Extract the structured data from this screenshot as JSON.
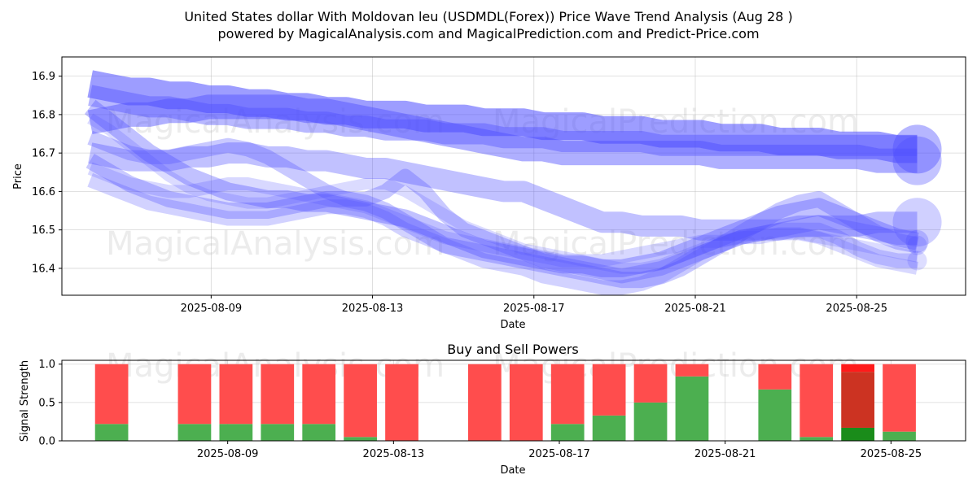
{
  "chart_data": [
    {
      "type": "line",
      "title": "United States dollar With Moldovan leu (USDMDL(Forex)) Price Wave Trend Analysis (Aug 28 )",
      "subtitle": "powered by MagicalAnalysis.com and MagicalPrediction.com and Predict-Price.com",
      "xlabel": "Date",
      "ylabel": "Price",
      "x_start": "2025-08-06",
      "x_end": "2025-08-27",
      "ylim": [
        16.33,
        16.95
      ],
      "xticks": [
        "2025-08-09",
        "2025-08-13",
        "2025-08-17",
        "2025-08-21",
        "2025-08-25"
      ],
      "yticks": [
        "16.4",
        "16.5",
        "16.6",
        "16.7",
        "16.8",
        "16.9"
      ],
      "watermarks": [
        "MagicalAnalysis.com",
        "MagicalPrediction.com",
        "MagicalAnalysis.com",
        "MagicalPrediction.com"
      ],
      "color": "#4d4dff",
      "x_days": [
        0,
        1,
        2,
        3,
        4,
        5,
        6,
        7,
        8,
        9,
        10,
        11,
        12,
        13,
        14,
        15,
        16,
        17,
        18,
        19,
        20,
        21,
        22,
        23,
        24,
        25,
        26,
        27,
        28,
        29,
        30,
        31,
        32,
        33,
        34,
        35,
        36,
        37,
        38,
        39,
        40,
        41,
        42
      ],
      "series": [
        {
          "name": "wave1",
          "width": 34,
          "opacity": 0.55,
          "values": [
            16.88,
            16.87,
            16.86,
            16.86,
            16.85,
            16.85,
            16.84,
            16.84,
            16.83,
            16.83,
            16.82,
            16.82,
            16.81,
            16.81,
            16.8,
            16.8,
            16.8,
            16.79,
            16.79,
            16.79,
            16.78,
            16.78,
            16.78,
            16.77,
            16.77,
            16.77,
            16.76,
            16.76,
            16.76,
            16.75,
            16.75,
            16.75,
            16.74,
            16.74,
            16.74,
            16.73,
            16.73,
            16.73,
            16.72,
            16.72,
            16.72,
            16.71,
            16.71
          ]
        },
        {
          "name": "wave2",
          "width": 30,
          "opacity": 0.45,
          "values": [
            16.78,
            16.79,
            16.8,
            16.8,
            16.81,
            16.81,
            16.82,
            16.82,
            16.82,
            16.82,
            16.82,
            16.81,
            16.81,
            16.8,
            16.79,
            16.78,
            16.77,
            16.76,
            16.75,
            16.74,
            16.73,
            16.72,
            16.71,
            16.71,
            16.7,
            16.7,
            16.7,
            16.7,
            16.7,
            16.7,
            16.7,
            16.7,
            16.69,
            16.69,
            16.69,
            16.69,
            16.69,
            16.69,
            16.69,
            16.69,
            16.68,
            16.68,
            16.68
          ]
        },
        {
          "name": "wave3",
          "width": 26,
          "opacity": 0.4,
          "values": [
            16.85,
            16.84,
            16.83,
            16.82,
            16.82,
            16.81,
            16.8,
            16.8,
            16.79,
            16.79,
            16.79,
            16.78,
            16.78,
            16.77,
            16.77,
            16.76,
            16.76,
            16.76,
            16.75,
            16.75,
            16.75,
            16.74,
            16.74,
            16.74,
            16.73,
            16.73,
            16.73,
            16.73,
            16.73,
            16.72,
            16.72,
            16.72,
            16.72,
            16.72,
            16.72,
            16.72,
            16.72,
            16.72,
            16.72,
            16.72,
            16.72,
            16.72,
            16.72
          ]
        },
        {
          "name": "wave4",
          "width": 26,
          "opacity": 0.35,
          "values": [
            16.7,
            16.69,
            16.68,
            16.68,
            16.68,
            16.69,
            16.69,
            16.7,
            16.7,
            16.69,
            16.69,
            16.68,
            16.68,
            16.67,
            16.66,
            16.66,
            16.65,
            16.64,
            16.63,
            16.62,
            16.61,
            16.6,
            16.6,
            16.58,
            16.56,
            16.54,
            16.52,
            16.52,
            16.51,
            16.51,
            16.51,
            16.5,
            16.5,
            16.5,
            16.5,
            16.5,
            16.51,
            16.51,
            16.51,
            16.51,
            16.52,
            16.52,
            16.52
          ]
        },
        {
          "name": "wave5",
          "width": 22,
          "opacity": 0.35,
          "values": [
            16.82,
            16.78,
            16.74,
            16.7,
            16.67,
            16.64,
            16.62,
            16.6,
            16.59,
            16.58,
            16.58,
            16.57,
            16.57,
            16.56,
            16.55,
            16.54,
            16.53,
            16.51,
            16.49,
            16.47,
            16.45,
            16.44,
            16.43,
            16.42,
            16.41,
            16.41,
            16.4,
            16.4,
            16.41,
            16.42,
            16.44,
            16.46,
            16.48,
            16.5,
            16.52,
            16.54,
            16.55,
            16.56,
            16.54,
            16.52,
            16.5,
            16.48,
            16.47
          ]
        },
        {
          "name": "wave6",
          "width": 20,
          "opacity": 0.3,
          "values": [
            16.68,
            16.65,
            16.62,
            16.6,
            16.58,
            16.57,
            16.56,
            16.55,
            16.55,
            16.55,
            16.56,
            16.57,
            16.58,
            16.58,
            16.57,
            16.55,
            16.52,
            16.49,
            16.46,
            16.45,
            16.44,
            16.43,
            16.42,
            16.41,
            16.4,
            16.39,
            16.38,
            16.37,
            16.37,
            16.38,
            16.4,
            16.43,
            16.46,
            16.49,
            16.52,
            16.55,
            16.57,
            16.58,
            16.55,
            16.52,
            16.49,
            16.47,
            16.46
          ]
        },
        {
          "name": "wave7",
          "width": 18,
          "opacity": 0.3,
          "values": [
            16.74,
            16.72,
            16.7,
            16.69,
            16.69,
            16.7,
            16.71,
            16.72,
            16.71,
            16.69,
            16.66,
            16.63,
            16.6,
            16.58,
            16.58,
            16.6,
            16.64,
            16.6,
            16.54,
            16.5,
            16.48,
            16.46,
            16.44,
            16.42,
            16.41,
            16.4,
            16.39,
            16.38,
            16.39,
            16.4,
            16.42,
            16.44,
            16.46,
            16.48,
            16.49,
            16.5,
            16.51,
            16.52,
            16.51,
            16.5,
            16.49,
            16.48,
            16.48
          ]
        },
        {
          "name": "wave8",
          "width": 18,
          "opacity": 0.25,
          "values": [
            16.63,
            16.61,
            16.59,
            16.57,
            16.56,
            16.55,
            16.54,
            16.53,
            16.53,
            16.53,
            16.54,
            16.55,
            16.56,
            16.56,
            16.55,
            16.53,
            16.5,
            16.48,
            16.46,
            16.44,
            16.42,
            16.41,
            16.4,
            16.38,
            16.37,
            16.36,
            16.35,
            16.35,
            16.36,
            16.38,
            16.41,
            16.44,
            16.46,
            16.48,
            16.49,
            16.5,
            16.5,
            16.5,
            16.48,
            16.45,
            16.43,
            16.42,
            16.42
          ]
        },
        {
          "name": "wave9",
          "width": 16,
          "opacity": 0.22,
          "values": [
            16.66,
            16.64,
            16.62,
            16.61,
            16.6,
            16.6,
            16.61,
            16.62,
            16.62,
            16.61,
            16.6,
            16.59,
            16.58,
            16.57,
            16.56,
            16.54,
            16.52,
            16.5,
            16.48,
            16.47,
            16.46,
            16.45,
            16.44,
            16.43,
            16.42,
            16.42,
            16.42,
            16.43,
            16.44,
            16.45,
            16.46,
            16.47,
            16.47,
            16.48,
            16.48,
            16.49,
            16.49,
            16.48,
            16.46,
            16.44,
            16.42,
            16.41,
            16.4
          ]
        },
        {
          "name": "wave10",
          "width": 14,
          "opacity": 0.2,
          "values": [
            16.79,
            16.76,
            16.72,
            16.68,
            16.64,
            16.61,
            16.59,
            16.58,
            16.57,
            16.57,
            16.58,
            16.59,
            16.6,
            16.61,
            16.62,
            16.62,
            16.6,
            16.57,
            16.54,
            16.51,
            16.49,
            16.47,
            16.45,
            16.44,
            16.43,
            16.42,
            16.41,
            16.4,
            16.4,
            16.41,
            16.43,
            16.45,
            16.47,
            16.48,
            16.49,
            16.49,
            16.49,
            16.48,
            16.47,
            16.46,
            16.45,
            16.44,
            16.43
          ]
        }
      ],
      "bubbles": [
        {
          "series": "wave1",
          "size": 30
        },
        {
          "series": "wave2",
          "size": 30
        },
        {
          "series": "wave4",
          "size": 30
        },
        {
          "series": "wave5",
          "size": 14
        },
        {
          "series": "wave6",
          "size": 12
        },
        {
          "series": "wave8",
          "size": 12
        }
      ]
    },
    {
      "type": "bar",
      "title": "Buy and Sell Powers",
      "xlabel": "Date",
      "ylabel": "Signal Strength",
      "ylim": [
        0,
        1.05
      ],
      "yticks": [
        "0.0",
        "0.5",
        "1.0"
      ],
      "xticks": [
        "2025-08-09",
        "2025-08-13",
        "2025-08-17",
        "2025-08-21",
        "2025-08-25"
      ],
      "x_start": "2025-08-06",
      "x_end": "2025-08-28",
      "buy_color": "#4caf50",
      "sell_color": "#ff4d4d",
      "highlight_buy_color": "#1a8c1a",
      "highlight_sell_color": "#cc3322",
      "highlight_top_color": "#ff1a1a",
      "bars": [
        {
          "day": 1,
          "buy": 0.22,
          "sell": 0.78
        },
        {
          "day": 3,
          "buy": 0.22,
          "sell": 0.78
        },
        {
          "day": 4,
          "buy": 0.22,
          "sell": 0.78
        },
        {
          "day": 5,
          "buy": 0.22,
          "sell": 0.78
        },
        {
          "day": 6,
          "buy": 0.22,
          "sell": 0.78
        },
        {
          "day": 7,
          "buy": 0.05,
          "sell": 0.95
        },
        {
          "day": 8,
          "buy": 0.0,
          "sell": 1.0
        },
        {
          "day": 10,
          "buy": 0.0,
          "sell": 1.0
        },
        {
          "day": 11,
          "buy": 0.0,
          "sell": 1.0
        },
        {
          "day": 12,
          "buy": 0.22,
          "sell": 0.78
        },
        {
          "day": 13,
          "buy": 0.33,
          "sell": 0.67
        },
        {
          "day": 14,
          "buy": 0.5,
          "sell": 0.5
        },
        {
          "day": 15,
          "buy": 0.84,
          "sell": 0.16
        },
        {
          "day": 17,
          "buy": 0.67,
          "sell": 0.33
        },
        {
          "day": 18,
          "buy": 0.05,
          "sell": 0.95
        },
        {
          "day": 19,
          "buy": 0.17,
          "sell": 0.73,
          "top": 0.1,
          "highlight": true
        },
        {
          "day": 20,
          "buy": 0.12,
          "sell": 0.88
        }
      ]
    }
  ]
}
